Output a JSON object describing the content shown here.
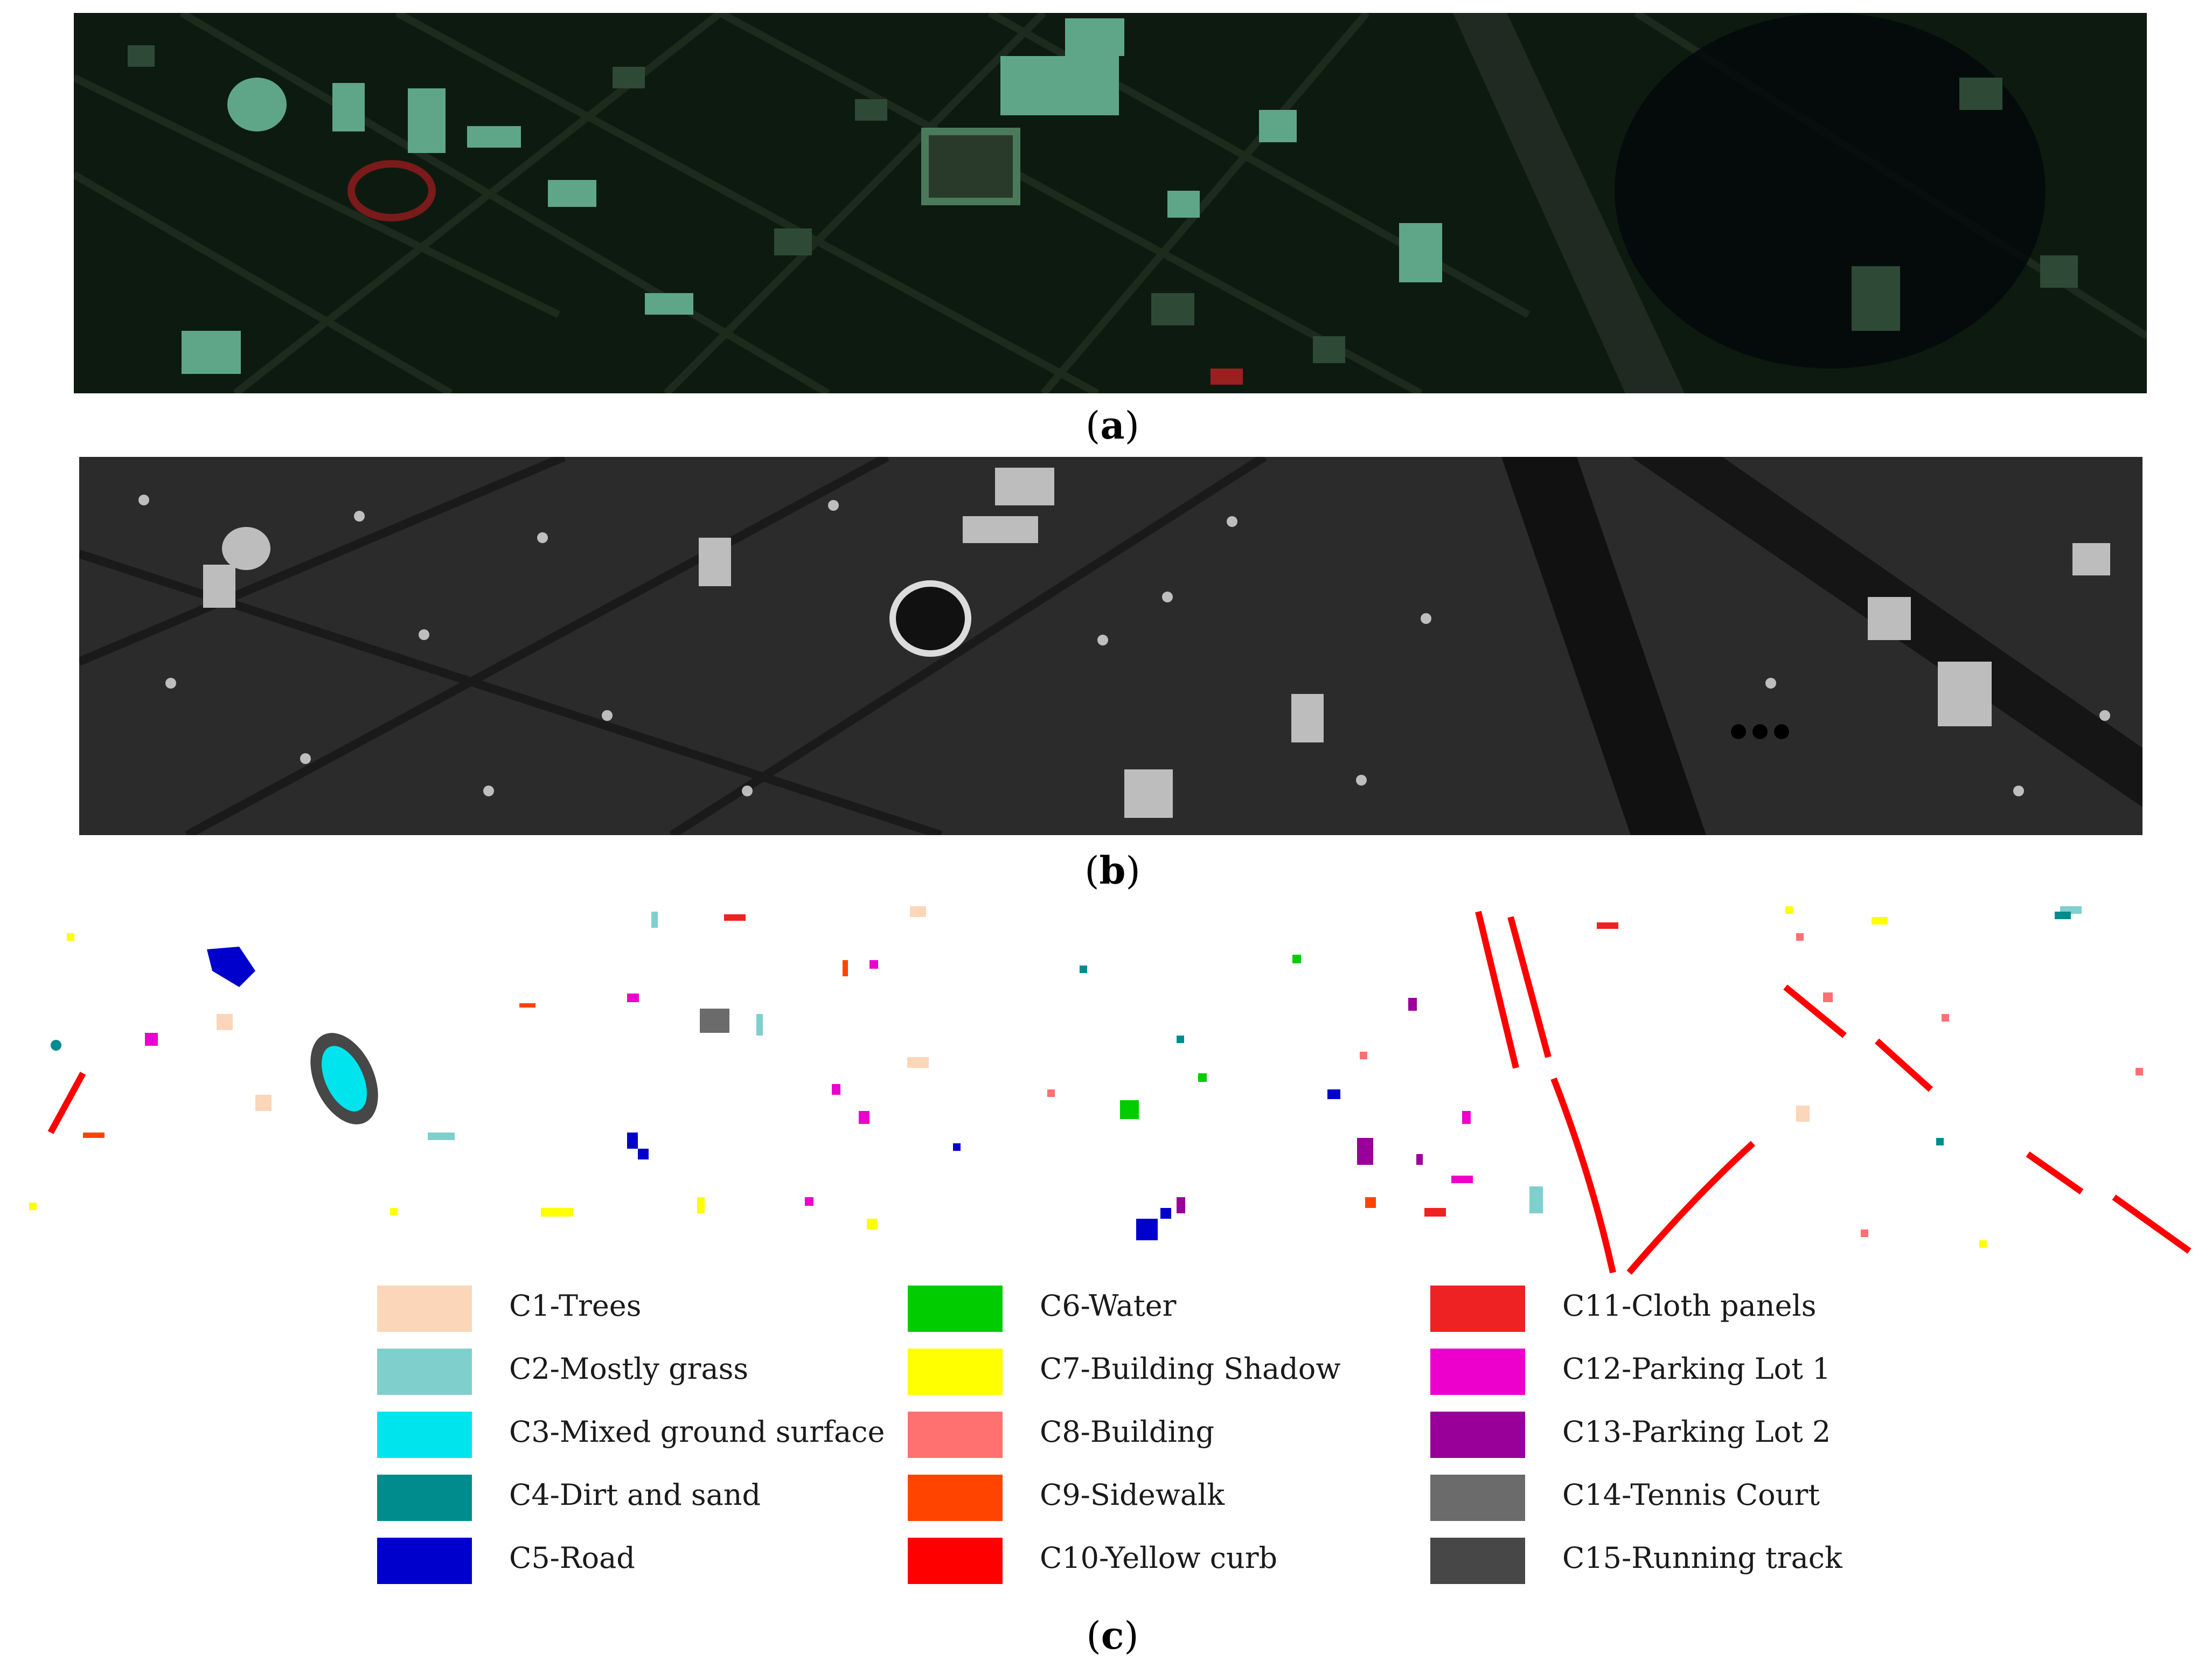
{
  "captions": {
    "a": "a",
    "b": "b",
    "c": "c"
  },
  "panels": {
    "a": {
      "kind": "false-color hyperspectral aerial image of an urban scene"
    },
    "b": {
      "kind": "grayscale LiDAR-derived elevation image of the same scene"
    },
    "c": {
      "kind": "ground-truth class map with colored training samples on white background"
    }
  },
  "legend": {
    "columns": [
      [
        {
          "label": "C1-Trees",
          "color": "#fcd6b8"
        },
        {
          "label": "C2-Mostly grass",
          "color": "#7fcfcd"
        },
        {
          "label": "C3-Mixed ground surface",
          "color": "#00e4ee"
        },
        {
          "label": "C4-Dirt and sand",
          "color": "#008c8c"
        },
        {
          "label": "C5-Road",
          "color": "#0000cc"
        }
      ],
      [
        {
          "label": "C6-Water",
          "color": "#00cc00"
        },
        {
          "label": "C7-Building Shadow",
          "color": "#ffff00"
        },
        {
          "label": "C8-Building",
          "color": "#ff7070"
        },
        {
          "label": "C9-Sidewalk",
          "color": "#ff4400"
        },
        {
          "label": "C10-Yellow curb",
          "color": "#ff0000"
        }
      ],
      [
        {
          "label": "C11-Cloth panels",
          "color": "#ee2222"
        },
        {
          "label": "C12-Parking Lot 1",
          "color": "#ee00cc"
        },
        {
          "label": "C13-Parking Lot 2",
          "color": "#990099"
        },
        {
          "label": "C14-Tennis Court",
          "color": "#6b6b6b"
        },
        {
          "label": "C15-Running track",
          "color": "#474747"
        }
      ]
    ]
  }
}
